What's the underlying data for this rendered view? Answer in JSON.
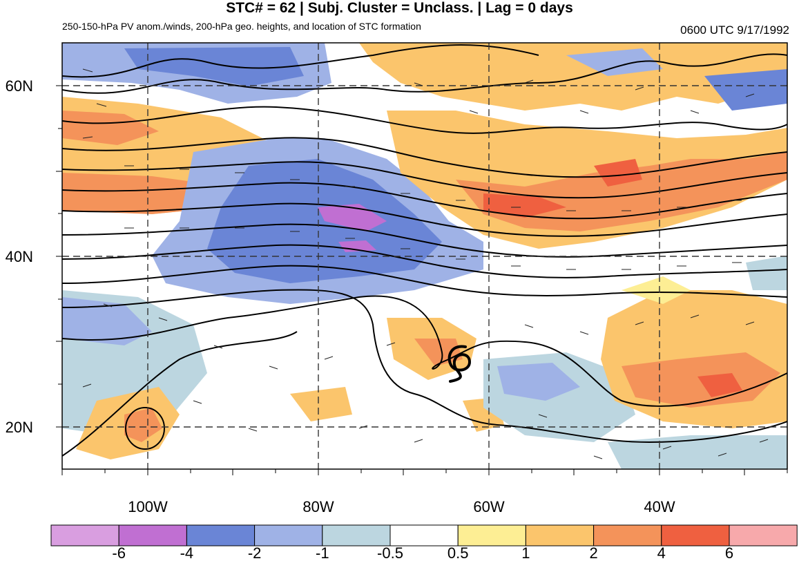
{
  "header": {
    "title": "STC# = 62 | Subj. Cluster = Unclass. | Lag = 0 days",
    "subtitle": "250-150-hPa PV anom./winds, 200-hPa geo. heights, and location of STC formation",
    "timestamp": "0600 UTC  9/17/1992"
  },
  "map": {
    "lon_range": [
      -110,
      -25
    ],
    "lat_range": [
      15,
      65
    ],
    "lat_ticks": [
      {
        "value": 60,
        "label": "60N"
      },
      {
        "value": 40,
        "label": "40N"
      },
      {
        "value": 20,
        "label": "20N"
      }
    ],
    "lon_ticks": [
      {
        "value": -100,
        "label": "100W"
      },
      {
        "value": -80,
        "label": "80W"
      },
      {
        "value": -60,
        "label": "60W"
      },
      {
        "value": -40,
        "label": "40W"
      }
    ],
    "gridlines": "dashed",
    "stc_symbol": {
      "lon": -64,
      "lat": 27,
      "icon": "tropical-cyclone-symbol"
    }
  },
  "colorbar": {
    "labels": [
      "-6",
      "-4",
      "-2",
      "-1",
      "-0.5",
      "0.5",
      "1",
      "2",
      "4",
      "6"
    ],
    "colors": [
      "#d99ee0",
      "#c06fd2",
      "#6a85d6",
      "#9fb2e6",
      "#bcd6e0",
      "#ffffff",
      "#fdee94",
      "#fbc56c",
      "#f4935a",
      "#ef6040",
      "#f7a9ab"
    ]
  }
}
